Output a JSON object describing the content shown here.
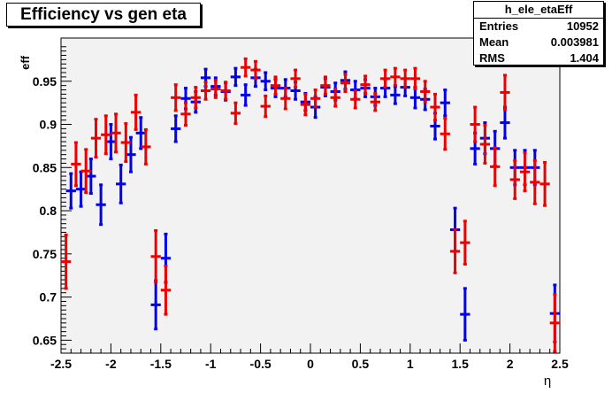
{
  "title": "Efficiency vs gen eta",
  "stats": {
    "name": "h_ele_etaEff",
    "rows": [
      {
        "label": "Entries",
        "value": "10952"
      },
      {
        "label": "Mean",
        "value": "0.003981"
      },
      {
        "label": "RMS",
        "value": "1.404"
      }
    ]
  },
  "chart_data": {
    "type": "scatter",
    "title": "Efficiency vs gen eta",
    "xlabel": "η",
    "ylabel": "eff",
    "xlim": [
      -2.5,
      2.5
    ],
    "ylim": [
      0.635,
      1.0
    ],
    "xticks": [
      "-2.5",
      "-2",
      "-1.5",
      "-1",
      "-0.5",
      "0",
      "0.5",
      "1",
      "1.5",
      "2",
      "2.5"
    ],
    "yticks": [
      "0.65",
      "0.7",
      "0.75",
      "0.8",
      "0.85",
      "0.9",
      "0.95"
    ],
    "grid": false,
    "series": [
      {
        "color": "#0000ee",
        "points": [
          {
            "x": -2.4,
            "y": 0.823,
            "e": 0.02
          },
          {
            "x": -2.3,
            "y": 0.825,
            "e": 0.02
          },
          {
            "x": -2.2,
            "y": 0.84,
            "e": 0.02
          },
          {
            "x": -2.1,
            "y": 0.807,
            "e": 0.023
          },
          {
            "x": -2.0,
            "y": 0.88,
            "e": 0.02
          },
          {
            "x": -1.9,
            "y": 0.831,
            "e": 0.022
          },
          {
            "x": -1.8,
            "y": 0.865,
            "e": 0.02
          },
          {
            "x": -1.7,
            "y": 0.89,
            "e": 0.018
          },
          {
            "x": -1.55,
            "y": 0.691,
            "e": 0.028
          },
          {
            "x": -1.45,
            "y": 0.745,
            "e": 0.028
          },
          {
            "x": -1.35,
            "y": 0.895,
            "e": 0.015
          },
          {
            "x": -1.25,
            "y": 0.93,
            "e": 0.012
          },
          {
            "x": -1.15,
            "y": 0.926,
            "e": 0.012
          },
          {
            "x": -1.05,
            "y": 0.954,
            "e": 0.01
          },
          {
            "x": -0.95,
            "y": 0.944,
            "e": 0.01
          },
          {
            "x": -0.85,
            "y": 0.938,
            "e": 0.01
          },
          {
            "x": -0.75,
            "y": 0.955,
            "e": 0.01
          },
          {
            "x": -0.65,
            "y": 0.934,
            "e": 0.012
          },
          {
            "x": -0.55,
            "y": 0.954,
            "e": 0.01
          },
          {
            "x": -0.45,
            "y": 0.95,
            "e": 0.01
          },
          {
            "x": -0.35,
            "y": 0.942,
            "e": 0.01
          },
          {
            "x": -0.25,
            "y": 0.942,
            "e": 0.01
          },
          {
            "x": -0.15,
            "y": 0.939,
            "e": 0.01
          },
          {
            "x": -0.05,
            "y": 0.926,
            "e": 0.01
          },
          {
            "x": 0.05,
            "y": 0.92,
            "e": 0.012
          },
          {
            "x": 0.15,
            "y": 0.943,
            "e": 0.01
          },
          {
            "x": 0.25,
            "y": 0.938,
            "e": 0.01
          },
          {
            "x": 0.35,
            "y": 0.951,
            "e": 0.01
          },
          {
            "x": 0.45,
            "y": 0.94,
            "e": 0.01
          },
          {
            "x": 0.55,
            "y": 0.942,
            "e": 0.01
          },
          {
            "x": 0.65,
            "y": 0.932,
            "e": 0.01
          },
          {
            "x": 0.75,
            "y": 0.942,
            "e": 0.01
          },
          {
            "x": 0.85,
            "y": 0.934,
            "e": 0.01
          },
          {
            "x": 0.95,
            "y": 0.943,
            "e": 0.01
          },
          {
            "x": 1.05,
            "y": 0.931,
            "e": 0.012
          },
          {
            "x": 1.15,
            "y": 0.929,
            "e": 0.012
          },
          {
            "x": 1.25,
            "y": 0.898,
            "e": 0.015
          },
          {
            "x": 1.35,
            "y": 0.925,
            "e": 0.015
          },
          {
            "x": 1.45,
            "y": 0.778,
            "e": 0.025
          },
          {
            "x": 1.55,
            "y": 0.68,
            "e": 0.03
          },
          {
            "x": 1.65,
            "y": 0.872,
            "e": 0.018
          },
          {
            "x": 1.75,
            "y": 0.884,
            "e": 0.018
          },
          {
            "x": 1.85,
            "y": 0.872,
            "e": 0.02
          },
          {
            "x": 1.95,
            "y": 0.902,
            "e": 0.018
          },
          {
            "x": 2.05,
            "y": 0.85,
            "e": 0.02
          },
          {
            "x": 2.15,
            "y": 0.85,
            "e": 0.02
          },
          {
            "x": 2.25,
            "y": 0.85,
            "e": 0.02
          },
          {
            "x": 2.45,
            "y": 0.681,
            "e": 0.033
          }
        ]
      },
      {
        "color": "#ee0000",
        "points": [
          {
            "x": -2.45,
            "y": 0.741,
            "e": 0.031
          },
          {
            "x": -2.35,
            "y": 0.854,
            "e": 0.025
          },
          {
            "x": -2.25,
            "y": 0.846,
            "e": 0.025
          },
          {
            "x": -2.15,
            "y": 0.884,
            "e": 0.022
          },
          {
            "x": -2.05,
            "y": 0.888,
            "e": 0.022
          },
          {
            "x": -1.95,
            "y": 0.89,
            "e": 0.022
          },
          {
            "x": -1.85,
            "y": 0.879,
            "e": 0.022
          },
          {
            "x": -1.75,
            "y": 0.914,
            "e": 0.02
          },
          {
            "x": -1.65,
            "y": 0.874,
            "e": 0.02
          },
          {
            "x": -1.55,
            "y": 0.747,
            "e": 0.03
          },
          {
            "x": -1.45,
            "y": 0.708,
            "e": 0.028
          },
          {
            "x": -1.35,
            "y": 0.931,
            "e": 0.015
          },
          {
            "x": -1.25,
            "y": 0.912,
            "e": 0.013
          },
          {
            "x": -1.15,
            "y": 0.931,
            "e": 0.012
          },
          {
            "x": -1.05,
            "y": 0.939,
            "e": 0.01
          },
          {
            "x": -0.95,
            "y": 0.941,
            "e": 0.01
          },
          {
            "x": -0.85,
            "y": 0.939,
            "e": 0.01
          },
          {
            "x": -0.75,
            "y": 0.913,
            "e": 0.012
          },
          {
            "x": -0.65,
            "y": 0.966,
            "e": 0.01
          },
          {
            "x": -0.55,
            "y": 0.963,
            "e": 0.01
          },
          {
            "x": -0.45,
            "y": 0.921,
            "e": 0.012
          },
          {
            "x": -0.35,
            "y": 0.945,
            "e": 0.01
          },
          {
            "x": -0.25,
            "y": 0.93,
            "e": 0.012
          },
          {
            "x": -0.15,
            "y": 0.953,
            "e": 0.01
          },
          {
            "x": -0.05,
            "y": 0.923,
            "e": 0.012
          },
          {
            "x": 0.05,
            "y": 0.93,
            "e": 0.01
          },
          {
            "x": 0.15,
            "y": 0.945,
            "e": 0.01
          },
          {
            "x": 0.25,
            "y": 0.931,
            "e": 0.01
          },
          {
            "x": 0.35,
            "y": 0.948,
            "e": 0.01
          },
          {
            "x": 0.45,
            "y": 0.929,
            "e": 0.01
          },
          {
            "x": 0.55,
            "y": 0.946,
            "e": 0.01
          },
          {
            "x": 0.65,
            "y": 0.926,
            "e": 0.01
          },
          {
            "x": 0.75,
            "y": 0.953,
            "e": 0.01
          },
          {
            "x": 0.85,
            "y": 0.955,
            "e": 0.01
          },
          {
            "x": 0.95,
            "y": 0.953,
            "e": 0.01
          },
          {
            "x": 1.05,
            "y": 0.953,
            "e": 0.012
          },
          {
            "x": 1.15,
            "y": 0.938,
            "e": 0.012
          },
          {
            "x": 1.25,
            "y": 0.92,
            "e": 0.015
          },
          {
            "x": 1.35,
            "y": 0.889,
            "e": 0.018
          },
          {
            "x": 1.45,
            "y": 0.753,
            "e": 0.025
          },
          {
            "x": 1.55,
            "y": 0.763,
            "e": 0.025
          },
          {
            "x": 1.65,
            "y": 0.9,
            "e": 0.02
          },
          {
            "x": 1.75,
            "y": 0.877,
            "e": 0.022
          },
          {
            "x": 1.85,
            "y": 0.851,
            "e": 0.022
          },
          {
            "x": 1.95,
            "y": 0.937,
            "e": 0.02
          },
          {
            "x": 2.05,
            "y": 0.836,
            "e": 0.022
          },
          {
            "x": 2.15,
            "y": 0.845,
            "e": 0.022
          },
          {
            "x": 2.25,
            "y": 0.833,
            "e": 0.025
          },
          {
            "x": 2.35,
            "y": 0.831,
            "e": 0.025
          },
          {
            "x": 2.45,
            "y": 0.67,
            "e": 0.033
          }
        ]
      }
    ]
  }
}
